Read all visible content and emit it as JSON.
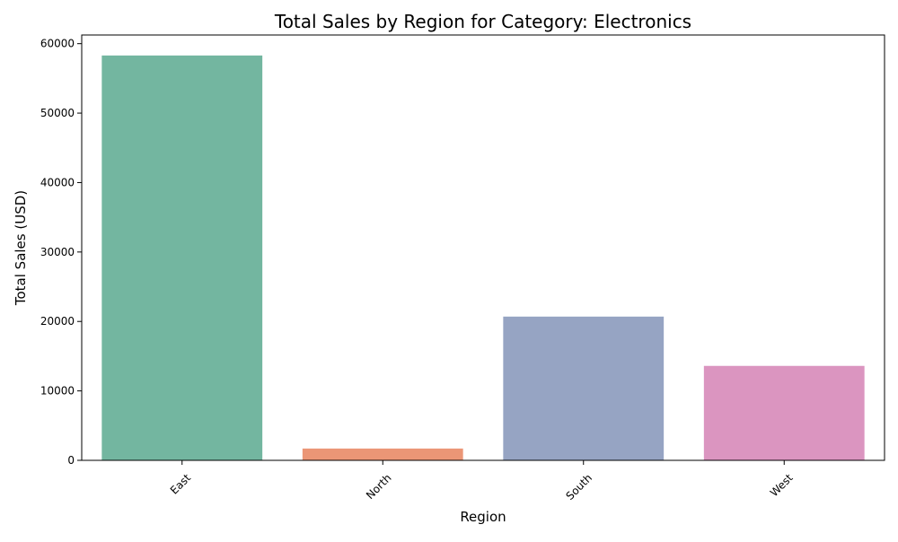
{
  "chart_data": {
    "type": "bar",
    "title": "Total Sales by Region for Category: Electronics",
    "xlabel": "Region",
    "ylabel": "Total Sales (USD)",
    "categories": [
      "East",
      "North",
      "South",
      "West"
    ],
    "values": [
      58300,
      1700,
      20700,
      13600
    ],
    "colors": [
      "#73b6a0",
      "#eb9676",
      "#96a4c3",
      "#db95c0"
    ],
    "ylim": [
      0,
      61250
    ],
    "yticks": [
      0,
      10000,
      20000,
      30000,
      40000,
      50000,
      60000
    ],
    "ytick_labels": [
      "0",
      "10000",
      "20000",
      "30000",
      "40000",
      "50000",
      "60000"
    ],
    "xtick_rotation_deg": 45,
    "grid": false,
    "legend": "none"
  }
}
